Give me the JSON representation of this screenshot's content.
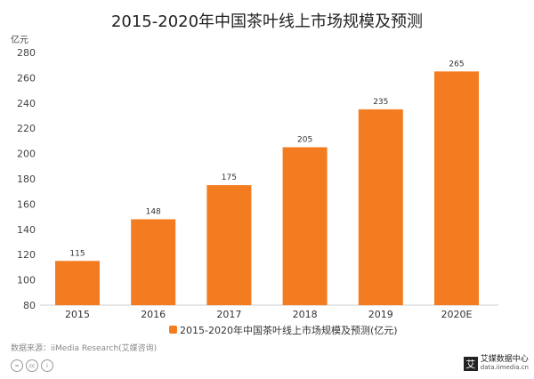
{
  "chart_data": {
    "type": "bar",
    "title": "2015-2020年中国茶叶线上市场规模及预测",
    "ylabel": "亿元",
    "categories": [
      "2015",
      "2016",
      "2017",
      "2018",
      "2019",
      "2020E"
    ],
    "series": [
      {
        "name": "2015-2020年中国茶叶线上市场规模及预测(亿元)",
        "values": [
          115,
          148,
          175,
          205,
          235,
          265
        ]
      }
    ],
    "ylim": [
      80,
      280
    ],
    "yticks": [
      80,
      100,
      120,
      140,
      160,
      180,
      200,
      220,
      240,
      260,
      280
    ],
    "grid": false,
    "legend": "bottom",
    "color": "#f47c20"
  },
  "footer": {
    "source": "数据来源：iiMedia Research(艾媒咨询)",
    "logo_name": "艾媒数据中心",
    "logo_url": "data.iimedia.cn"
  }
}
